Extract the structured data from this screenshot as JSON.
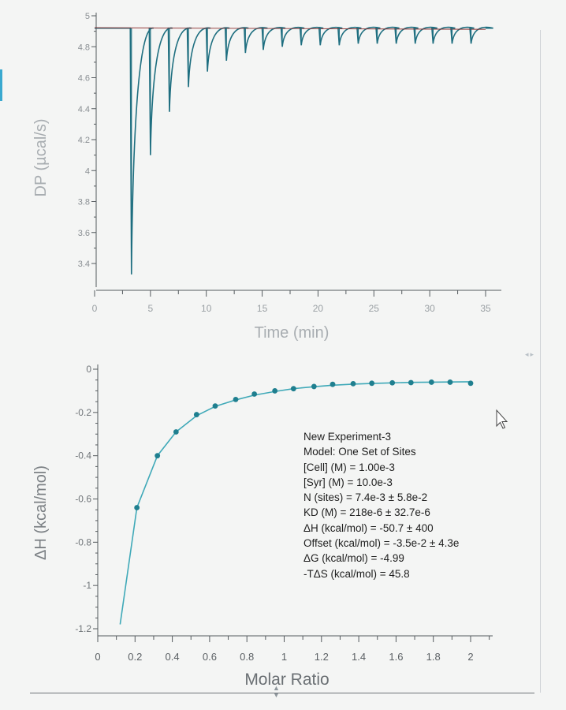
{
  "chart_data": [
    {
      "type": "line",
      "xlabel": "Time (min)",
      "ylabel": "DP (µcal/s)",
      "xlim": [
        0,
        35
      ],
      "ylim": [
        3.3,
        5.0
      ],
      "xticks": [
        "0",
        "5",
        "10",
        "15",
        "20",
        "25",
        "30",
        "35"
      ],
      "yticks": [
        "3.4",
        "3.6",
        "3.8",
        "4",
        "4.2",
        "4.4",
        "4.6",
        "4.8",
        "5"
      ],
      "baseline": 4.92,
      "series": [
        {
          "x": [
            3.3,
            5.0,
            6.7,
            8.4,
            10.1,
            11.8,
            13.5,
            15.1,
            16.8,
            18.5,
            20.2,
            21.9,
            23.6,
            25.3,
            27.0,
            28.7,
            30.3,
            32.0,
            33.7
          ],
          "values": [
            3.33,
            4.1,
            4.38,
            4.54,
            4.64,
            4.71,
            4.76,
            4.78,
            4.8,
            4.81,
            4.81,
            4.81,
            4.82,
            4.82,
            4.82,
            4.82,
            4.82,
            4.82,
            4.82
          ]
        }
      ]
    },
    {
      "type": "scatter",
      "xlabel": "Molar Ratio",
      "ylabel": "ΔH (kcal/mol)",
      "xlim": [
        0,
        2.1
      ],
      "ylim": [
        -1.22,
        0
      ],
      "xticks": [
        "0",
        "0.2",
        "0.4",
        "0.6",
        "0.8",
        "1",
        "1.2",
        "1.4",
        "1.6",
        "1.8",
        "2"
      ],
      "yticks": [
        "-1.2",
        "-1",
        "-0.8",
        "-0.6",
        "-0.4",
        "-0.2",
        "0"
      ],
      "series": [
        {
          "x": [
            0.21,
            0.32,
            0.42,
            0.53,
            0.63,
            0.74,
            0.84,
            0.95,
            1.05,
            1.16,
            1.26,
            1.37,
            1.47,
            1.58,
            1.68,
            1.79,
            1.89,
            2.0
          ],
          "values": [
            -0.64,
            -0.4,
            -0.29,
            -0.21,
            -0.17,
            -0.14,
            -0.115,
            -0.1,
            -0.09,
            -0.08,
            -0.07,
            -0.067,
            -0.065,
            -0.063,
            -0.062,
            -0.06,
            -0.06,
            -0.065
          ]
        }
      ],
      "fit": {
        "x": [
          0.12,
          0.21,
          0.32,
          0.42,
          0.53,
          0.63,
          0.74,
          0.84,
          0.95,
          1.05,
          1.16,
          1.26,
          1.37,
          1.47,
          1.58,
          1.68,
          1.79,
          1.89,
          2.0
        ],
        "values": [
          -1.18,
          -0.64,
          -0.4,
          -0.29,
          -0.215,
          -0.172,
          -0.142,
          -0.12,
          -0.103,
          -0.09,
          -0.081,
          -0.074,
          -0.069,
          -0.066,
          -0.063,
          -0.061,
          -0.06,
          -0.059,
          -0.058
        ]
      },
      "annotation": [
        "New Experiment-3",
        "Model: One Set of Sites",
        "[Cell] (M) = 1.00e-3",
        "[Syr] (M) = 10.0e-3",
        "N (sites) = 7.4e-3 ± 5.8e-2",
        "KD (M) = 218e-6 ± 32.7e-6",
        "ΔH (kcal/mol) = -50.7 ± 400",
        "Offset (kcal/mol) = -3.5e-2 ± 4.3e",
        "ΔG (kcal/mol) = -4.99",
        "-TΔS (kcal/mol) = 45.8"
      ]
    }
  ],
  "colors": {
    "trace": "#1f6f80",
    "fit": "#3fa9b8",
    "points": "#1f7f8f",
    "baseline": "#8a2a2a",
    "axis": "#555a5e",
    "label": "#a8adb1"
  },
  "icons": {
    "cursor": "mouse-pointer-icon"
  }
}
